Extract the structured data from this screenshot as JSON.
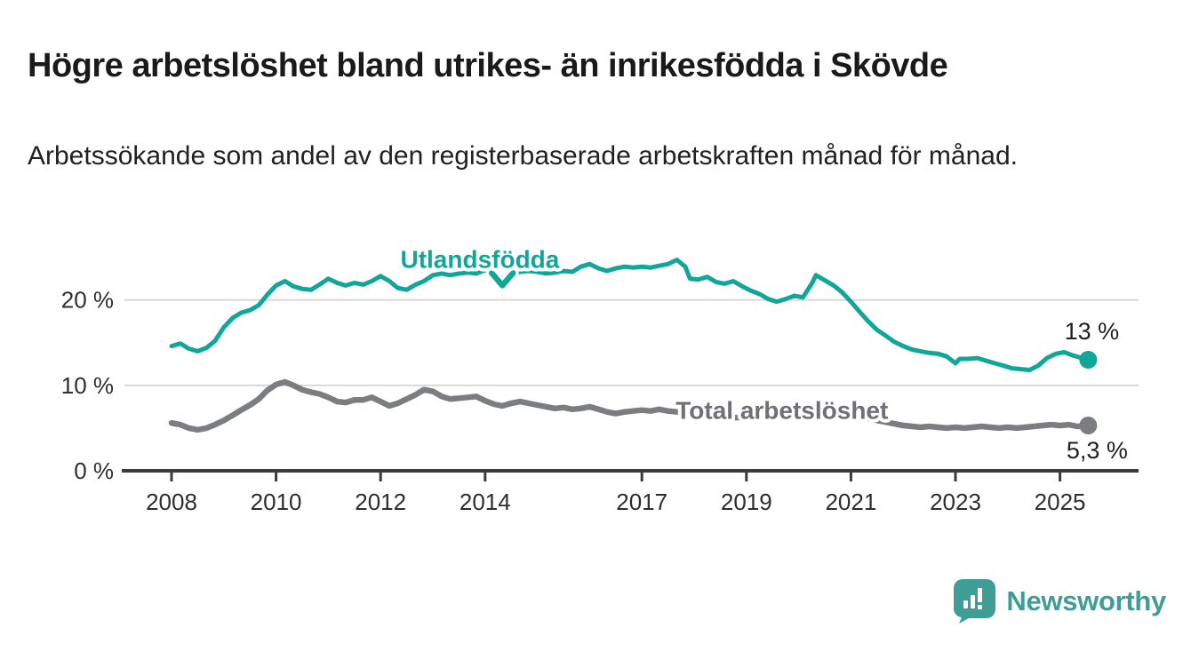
{
  "header": {
    "title": "Högre arbetslöshet bland utrikes- än inrikesfödda i Skövde",
    "subtitle": "Arbetssökande som andel av den registerbaserade arbetskraften månad för månad."
  },
  "branding": {
    "logo_text": "Newsworthy",
    "logo_color": "#3f9d98"
  },
  "chart_data": {
    "type": "line",
    "unit": "%",
    "grid": "horizontal",
    "xlim": [
      2007.6,
      2026.2
    ],
    "ylim": [
      0,
      27
    ],
    "x_ticks": [
      "2008",
      "2010",
      "2012",
      "2014",
      "2017",
      "2019",
      "2021",
      "2023",
      "2025"
    ],
    "x_tick_years": [
      2008,
      2010,
      2012,
      2014,
      2017,
      2019,
      2021,
      2023,
      2025
    ],
    "y_ticks": [
      {
        "value": 0,
        "label": "0 %"
      },
      {
        "value": 10,
        "label": "10 %"
      },
      {
        "value": 20,
        "label": "20 %"
      }
    ],
    "colors": {
      "grid": "#d8d8d8",
      "axis": "#3b3b3b"
    },
    "series": [
      {
        "name": "Total arbetslöshet",
        "color": "#7c7d80",
        "label_color": "#717175",
        "end_label": "5,3 %",
        "end_value": 5.3,
        "points": [
          [
            2008.0,
            5.6
          ],
          [
            2008.17,
            5.4
          ],
          [
            2008.33,
            5.0
          ],
          [
            2008.5,
            4.8
          ],
          [
            2008.67,
            5.0
          ],
          [
            2008.83,
            5.4
          ],
          [
            2009.0,
            5.9
          ],
          [
            2009.17,
            6.5
          ],
          [
            2009.33,
            7.1
          ],
          [
            2009.5,
            7.7
          ],
          [
            2009.67,
            8.4
          ],
          [
            2009.83,
            9.4
          ],
          [
            2010.0,
            10.1
          ],
          [
            2010.17,
            10.4
          ],
          [
            2010.33,
            10.0
          ],
          [
            2010.5,
            9.5
          ],
          [
            2010.67,
            9.2
          ],
          [
            2010.83,
            9.0
          ],
          [
            2011.0,
            8.6
          ],
          [
            2011.17,
            8.1
          ],
          [
            2011.33,
            8.0
          ],
          [
            2011.5,
            8.3
          ],
          [
            2011.67,
            8.3
          ],
          [
            2011.83,
            8.6
          ],
          [
            2012.0,
            8.1
          ],
          [
            2012.17,
            7.6
          ],
          [
            2012.33,
            7.9
          ],
          [
            2012.5,
            8.4
          ],
          [
            2012.67,
            8.9
          ],
          [
            2012.83,
            9.5
          ],
          [
            2013.0,
            9.3
          ],
          [
            2013.17,
            8.7
          ],
          [
            2013.33,
            8.4
          ],
          [
            2013.5,
            8.5
          ],
          [
            2013.67,
            8.6
          ],
          [
            2013.83,
            8.7
          ],
          [
            2014.0,
            8.2
          ],
          [
            2014.17,
            7.8
          ],
          [
            2014.33,
            7.6
          ],
          [
            2014.5,
            7.9
          ],
          [
            2014.67,
            8.1
          ],
          [
            2014.83,
            7.9
          ],
          [
            2015.0,
            7.7
          ],
          [
            2015.17,
            7.5
          ],
          [
            2015.33,
            7.3
          ],
          [
            2015.5,
            7.4
          ],
          [
            2015.67,
            7.2
          ],
          [
            2015.83,
            7.3
          ],
          [
            2016.0,
            7.5
          ],
          [
            2016.17,
            7.2
          ],
          [
            2016.33,
            6.9
          ],
          [
            2016.5,
            6.7
          ],
          [
            2016.67,
            6.9
          ],
          [
            2016.83,
            7.0
          ],
          [
            2017.0,
            7.1
          ],
          [
            2017.17,
            7.0
          ],
          [
            2017.33,
            7.2
          ],
          [
            2017.5,
            7.0
          ],
          [
            2017.67,
            6.9
          ],
          [
            2017.83,
            6.8
          ],
          [
            2018.0,
            6.6
          ],
          [
            2018.25,
            6.4
          ],
          [
            2018.5,
            6.3
          ],
          [
            2018.75,
            6.2
          ],
          [
            2019.0,
            6.3
          ],
          [
            2019.25,
            6.4
          ],
          [
            2019.5,
            6.5
          ],
          [
            2019.75,
            6.6
          ],
          [
            2020.0,
            6.8
          ],
          [
            2020.25,
            7.2
          ],
          [
            2020.5,
            7.4
          ],
          [
            2020.75,
            7.1
          ],
          [
            2021.0,
            6.7
          ],
          [
            2021.25,
            6.2
          ],
          [
            2021.5,
            5.9
          ],
          [
            2021.67,
            5.7
          ],
          [
            2021.83,
            5.5
          ],
          [
            2022.0,
            5.3
          ],
          [
            2022.17,
            5.2
          ],
          [
            2022.33,
            5.1
          ],
          [
            2022.5,
            5.2
          ],
          [
            2022.67,
            5.1
          ],
          [
            2022.83,
            5.0
          ],
          [
            2023.0,
            5.1
          ],
          [
            2023.17,
            5.0
          ],
          [
            2023.33,
            5.1
          ],
          [
            2023.5,
            5.2
          ],
          [
            2023.67,
            5.1
          ],
          [
            2023.83,
            5.0
          ],
          [
            2024.0,
            5.1
          ],
          [
            2024.17,
            5.0
          ],
          [
            2024.33,
            5.1
          ],
          [
            2024.5,
            5.2
          ],
          [
            2024.67,
            5.3
          ],
          [
            2024.83,
            5.4
          ],
          [
            2025.0,
            5.3
          ],
          [
            2025.17,
            5.4
          ],
          [
            2025.33,
            5.2
          ],
          [
            2025.54,
            5.3
          ]
        ]
      },
      {
        "name": "Utlandsfödda",
        "color": "#12a69b",
        "label_color": "#12a69b",
        "end_label": "13 %",
        "end_value": 13,
        "points": [
          [
            2008.0,
            14.6
          ],
          [
            2008.17,
            14.9
          ],
          [
            2008.33,
            14.3
          ],
          [
            2008.5,
            14.0
          ],
          [
            2008.67,
            14.4
          ],
          [
            2008.83,
            15.2
          ],
          [
            2009.0,
            16.8
          ],
          [
            2009.17,
            17.9
          ],
          [
            2009.33,
            18.5
          ],
          [
            2009.5,
            18.8
          ],
          [
            2009.67,
            19.4
          ],
          [
            2009.83,
            20.6
          ],
          [
            2010.0,
            21.7
          ],
          [
            2010.17,
            22.2
          ],
          [
            2010.33,
            21.6
          ],
          [
            2010.5,
            21.3
          ],
          [
            2010.67,
            21.2
          ],
          [
            2010.83,
            21.8
          ],
          [
            2011.0,
            22.5
          ],
          [
            2011.17,
            22.0
          ],
          [
            2011.33,
            21.7
          ],
          [
            2011.5,
            22.0
          ],
          [
            2011.67,
            21.8
          ],
          [
            2011.83,
            22.2
          ],
          [
            2012.0,
            22.8
          ],
          [
            2012.17,
            22.2
          ],
          [
            2012.33,
            21.4
          ],
          [
            2012.5,
            21.2
          ],
          [
            2012.67,
            21.8
          ],
          [
            2012.83,
            22.2
          ],
          [
            2013.0,
            22.9
          ],
          [
            2013.17,
            23.1
          ],
          [
            2013.33,
            22.9
          ],
          [
            2013.5,
            23.1
          ],
          [
            2013.67,
            23.2
          ],
          [
            2013.83,
            23.1
          ],
          [
            2014.0,
            23.5
          ],
          [
            2014.17,
            23.2
          ],
          [
            2014.33,
            22.5
          ],
          [
            2014.5,
            23.0
          ],
          [
            2014.67,
            23.3
          ],
          [
            2014.83,
            23.4
          ],
          [
            2015.0,
            23.3
          ],
          [
            2015.17,
            23.1
          ],
          [
            2015.33,
            23.2
          ],
          [
            2015.5,
            23.4
          ],
          [
            2015.67,
            23.3
          ],
          [
            2015.83,
            23.9
          ],
          [
            2016.0,
            24.2
          ],
          [
            2016.17,
            23.7
          ],
          [
            2016.33,
            23.4
          ],
          [
            2016.5,
            23.7
          ],
          [
            2016.67,
            23.9
          ],
          [
            2016.83,
            23.8
          ],
          [
            2017.0,
            23.9
          ],
          [
            2017.17,
            23.8
          ],
          [
            2017.33,
            24.0
          ],
          [
            2017.5,
            24.2
          ],
          [
            2017.67,
            24.7
          ],
          [
            2017.83,
            23.9
          ],
          [
            2017.92,
            22.5
          ],
          [
            2018.08,
            22.4
          ],
          [
            2018.25,
            22.7
          ],
          [
            2018.42,
            22.1
          ],
          [
            2018.58,
            21.9
          ],
          [
            2018.75,
            22.2
          ],
          [
            2018.92,
            21.6
          ],
          [
            2019.08,
            21.1
          ],
          [
            2019.25,
            20.7
          ],
          [
            2019.42,
            20.1
          ],
          [
            2019.58,
            19.8
          ],
          [
            2019.75,
            20.1
          ],
          [
            2019.92,
            20.5
          ],
          [
            2020.08,
            20.3
          ],
          [
            2020.25,
            21.9
          ],
          [
            2020.33,
            22.9
          ],
          [
            2020.5,
            22.3
          ],
          [
            2020.67,
            21.7
          ],
          [
            2020.83,
            20.9
          ],
          [
            2021.0,
            19.8
          ],
          [
            2021.17,
            18.6
          ],
          [
            2021.33,
            17.5
          ],
          [
            2021.5,
            16.5
          ],
          [
            2021.67,
            15.8
          ],
          [
            2021.83,
            15.1
          ],
          [
            2022.0,
            14.6
          ],
          [
            2022.17,
            14.2
          ],
          [
            2022.33,
            14.0
          ],
          [
            2022.5,
            13.8
          ],
          [
            2022.67,
            13.7
          ],
          [
            2022.83,
            13.4
          ],
          [
            2023.0,
            12.6
          ],
          [
            2023.08,
            13.1
          ],
          [
            2023.25,
            13.1
          ],
          [
            2023.42,
            13.2
          ],
          [
            2023.58,
            12.9
          ],
          [
            2023.75,
            12.6
          ],
          [
            2023.92,
            12.3
          ],
          [
            2024.08,
            12.0
          ],
          [
            2024.25,
            11.9
          ],
          [
            2024.42,
            11.8
          ],
          [
            2024.58,
            12.3
          ],
          [
            2024.75,
            13.2
          ],
          [
            2024.92,
            13.7
          ],
          [
            2025.08,
            13.9
          ],
          [
            2025.25,
            13.5
          ],
          [
            2025.42,
            13.2
          ],
          [
            2025.54,
            13.0
          ]
        ]
      }
    ],
    "annotations": [
      {
        "text": "Utlandsfödda",
        "x": 2013.9,
        "y": 24.8,
        "color": "#12a69b",
        "arrow": {
          "x": 2014.33,
          "y": 21.7
        }
      },
      {
        "text": "Total arbetslöshet",
        "x": 2019.68,
        "y": 7.1,
        "color": "#717175"
      }
    ]
  }
}
